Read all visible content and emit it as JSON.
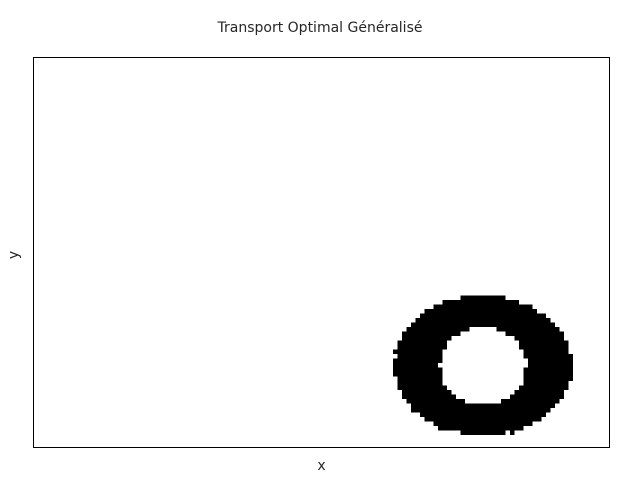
{
  "chart_data": {
    "type": "heatmap",
    "title": "Transport Optimal Généralisé",
    "xlabel": "x",
    "ylabel": "y",
    "grid": false,
    "legend": "none",
    "x_ticks": [],
    "y_ticks": [],
    "colormap": "binary",
    "colors": {
      "filled": "#000000",
      "background": "#ffffff",
      "frame": "#000000"
    },
    "series": [
      {
        "shape": "annulus",
        "center": [
          0.78,
          0.21
        ],
        "outer_radii": [
          0.155,
          0.18
        ],
        "inner_radii": [
          0.075,
          0.1
        ]
      }
    ]
  }
}
